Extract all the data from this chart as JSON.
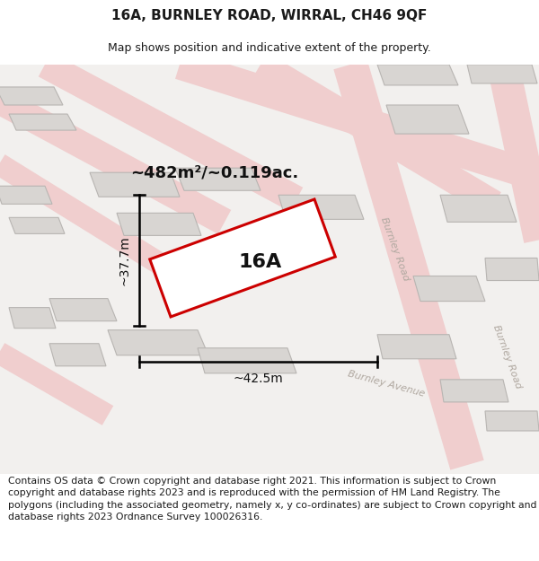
{
  "title": "16A, BURNLEY ROAD, WIRRAL, CH46 9QF",
  "subtitle": "Map shows position and indicative extent of the property.",
  "footer": "Contains OS data © Crown copyright and database right 2021. This information is subject to Crown copyright and database rights 2023 and is reproduced with the permission of HM Land Registry. The polygons (including the associated geometry, namely x, y co-ordinates) are subject to Crown copyright and database rights 2023 Ordnance Survey 100026316.",
  "bg_color": "#ffffff",
  "map_bg": "#f2f0ee",
  "road_color": "#f0cece",
  "road_outline": "#e0b8b8",
  "building_fill": "#d8d5d2",
  "building_edge": "#b8b5b2",
  "subject_color": "#cc0000",
  "subject_fill": "#ffffff",
  "label_16A": "16A",
  "area_label": "~482m²/~0.119ac.",
  "width_label": "~42.5m",
  "height_label": "~37.7m",
  "road_label1": "Burnley Road",
  "road_label2": "Burnley Avenue",
  "road_label3": "Burnley Road",
  "road_label_color": "#b0a8a0",
  "title_fontsize": 11,
  "subtitle_fontsize": 9,
  "footer_fontsize": 7.8
}
